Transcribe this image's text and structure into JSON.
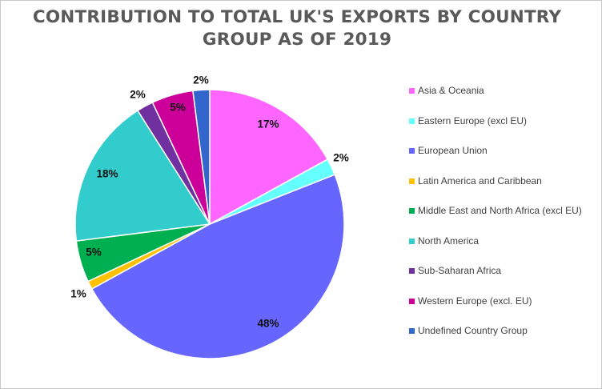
{
  "chart_data": {
    "type": "pie",
    "title_lines": [
      "CONTRIBUTION TO TOTAL UK'S EXPORTS BY COUNTRY",
      "GROUP AS OF 2019"
    ],
    "legend_position": "right",
    "slices": [
      {
        "name": "Asia & Oceania",
        "value": 17,
        "label": "17%",
        "color": "#ff66ff"
      },
      {
        "name": "Eastern Europe (excl EU)",
        "value": 2,
        "label": "2%",
        "color": "#66ffff"
      },
      {
        "name": "European Union",
        "value": 48,
        "label": "48%",
        "color": "#6666ff"
      },
      {
        "name": "Latin America and Caribbean",
        "value": 1,
        "label": "1%",
        "color": "#ffc000"
      },
      {
        "name": "Middle East and North Africa (excl EU)",
        "value": 5,
        "label": "5%",
        "color": "#00b050"
      },
      {
        "name": "North America",
        "value": 18,
        "label": "18%",
        "color": "#33cccc"
      },
      {
        "name": "Sub-Saharan Africa",
        "value": 2,
        "label": "2%",
        "color": "#7030a0"
      },
      {
        "name": "Western Europe (excl. EU)",
        "value": 5,
        "label": "5%",
        "color": "#cc0099"
      },
      {
        "name": "Undefined Country Group",
        "value": 2,
        "label": "2%",
        "color": "#3366cc"
      }
    ]
  }
}
